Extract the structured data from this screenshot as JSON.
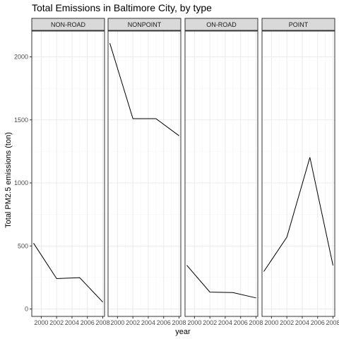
{
  "chart_data": {
    "type": "line",
    "title": "Total Emissions in Baltimore City, by type",
    "xlabel": "year",
    "ylabel": "Total PM2.5 emissions (ton)",
    "x": [
      1999,
      2002,
      2005,
      2008
    ],
    "x_ticks": [
      2000,
      2002,
      2004,
      2006,
      2008
    ],
    "x_tick_labels": [
      "2000",
      "2002",
      "2004",
      "2006",
      "2008"
    ],
    "xlim": [
      1999,
      2008
    ],
    "y_ticks": [
      0,
      500,
      1000,
      1500,
      2000
    ],
    "y_tick_labels": [
      "0",
      "500",
      "1000",
      "1500",
      "2000"
    ],
    "ylim": [
      0,
      2100
    ],
    "grid": true,
    "facets": [
      {
        "label": "NON-ROAD",
        "values": [
          522,
          241,
          249,
          55
        ]
      },
      {
        "label": "NONPOINT",
        "values": [
          2108,
          1510,
          1510,
          1374
        ]
      },
      {
        "label": "ON-ROAD",
        "values": [
          347,
          134,
          130,
          88
        ]
      },
      {
        "label": "POINT",
        "values": [
          297,
          570,
          1203,
          345
        ]
      }
    ],
    "colors": {
      "line": "#000000",
      "panel_border": "#333333",
      "strip_fill": "#d9d9d9",
      "grid_major": "#ebebeb",
      "grid_minor": "#f5f5f5",
      "tick_text": "#4d4d4d"
    }
  }
}
